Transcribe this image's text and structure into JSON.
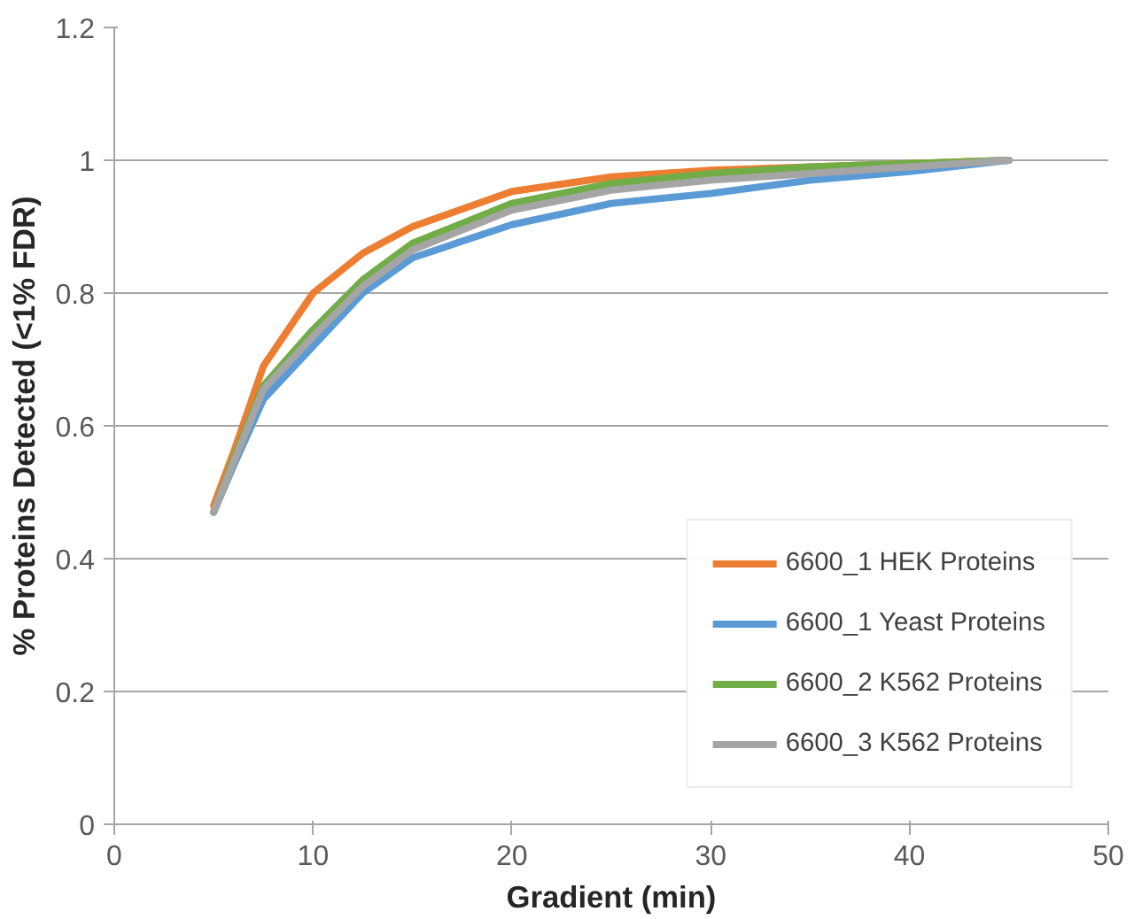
{
  "chart_data": {
    "type": "line",
    "xlabel": "Gradient (min)",
    "ylabel": "% Proteins Detected (<1% FDR)",
    "xlim": [
      0,
      50
    ],
    "xticks": [
      0,
      10,
      20,
      30,
      40,
      50
    ],
    "ylim": [
      0,
      1.2
    ],
    "yticks": [
      0,
      0.2,
      0.4,
      0.6,
      0.8,
      1,
      1.2
    ],
    "x": [
      5,
      6,
      7.5,
      10,
      12.5,
      15,
      20,
      25,
      30,
      35,
      40,
      45
    ],
    "series": [
      {
        "name": "6600_1 HEK Proteins",
        "color": "#ed7d31",
        "values": [
          0.48,
          0.56,
          0.69,
          0.8,
          0.86,
          0.9,
          0.953,
          0.975,
          0.985,
          0.99,
          0.995,
          1.0
        ]
      },
      {
        "name": "6600_1 Yeast Proteins",
        "color": "#5b9bd5",
        "values": [
          0.47,
          0.54,
          0.64,
          0.72,
          0.8,
          0.853,
          0.903,
          0.935,
          0.95,
          0.97,
          0.983,
          1.0
        ]
      },
      {
        "name": "6600_2 K562 Proteins",
        "color": "#70ad47",
        "values": [
          0.47,
          0.55,
          0.66,
          0.745,
          0.82,
          0.875,
          0.935,
          0.965,
          0.98,
          0.99,
          0.995,
          1.0
        ]
      },
      {
        "name": "6600_3 K562 Proteins",
        "color": "#a5a5a5",
        "values": [
          0.47,
          0.545,
          0.655,
          0.735,
          0.81,
          0.865,
          0.925,
          0.955,
          0.97,
          0.98,
          0.99,
          1.0
        ]
      }
    ],
    "grid": "y",
    "legend": "bottom right",
    "line_style": "solid",
    "marker": "none"
  }
}
